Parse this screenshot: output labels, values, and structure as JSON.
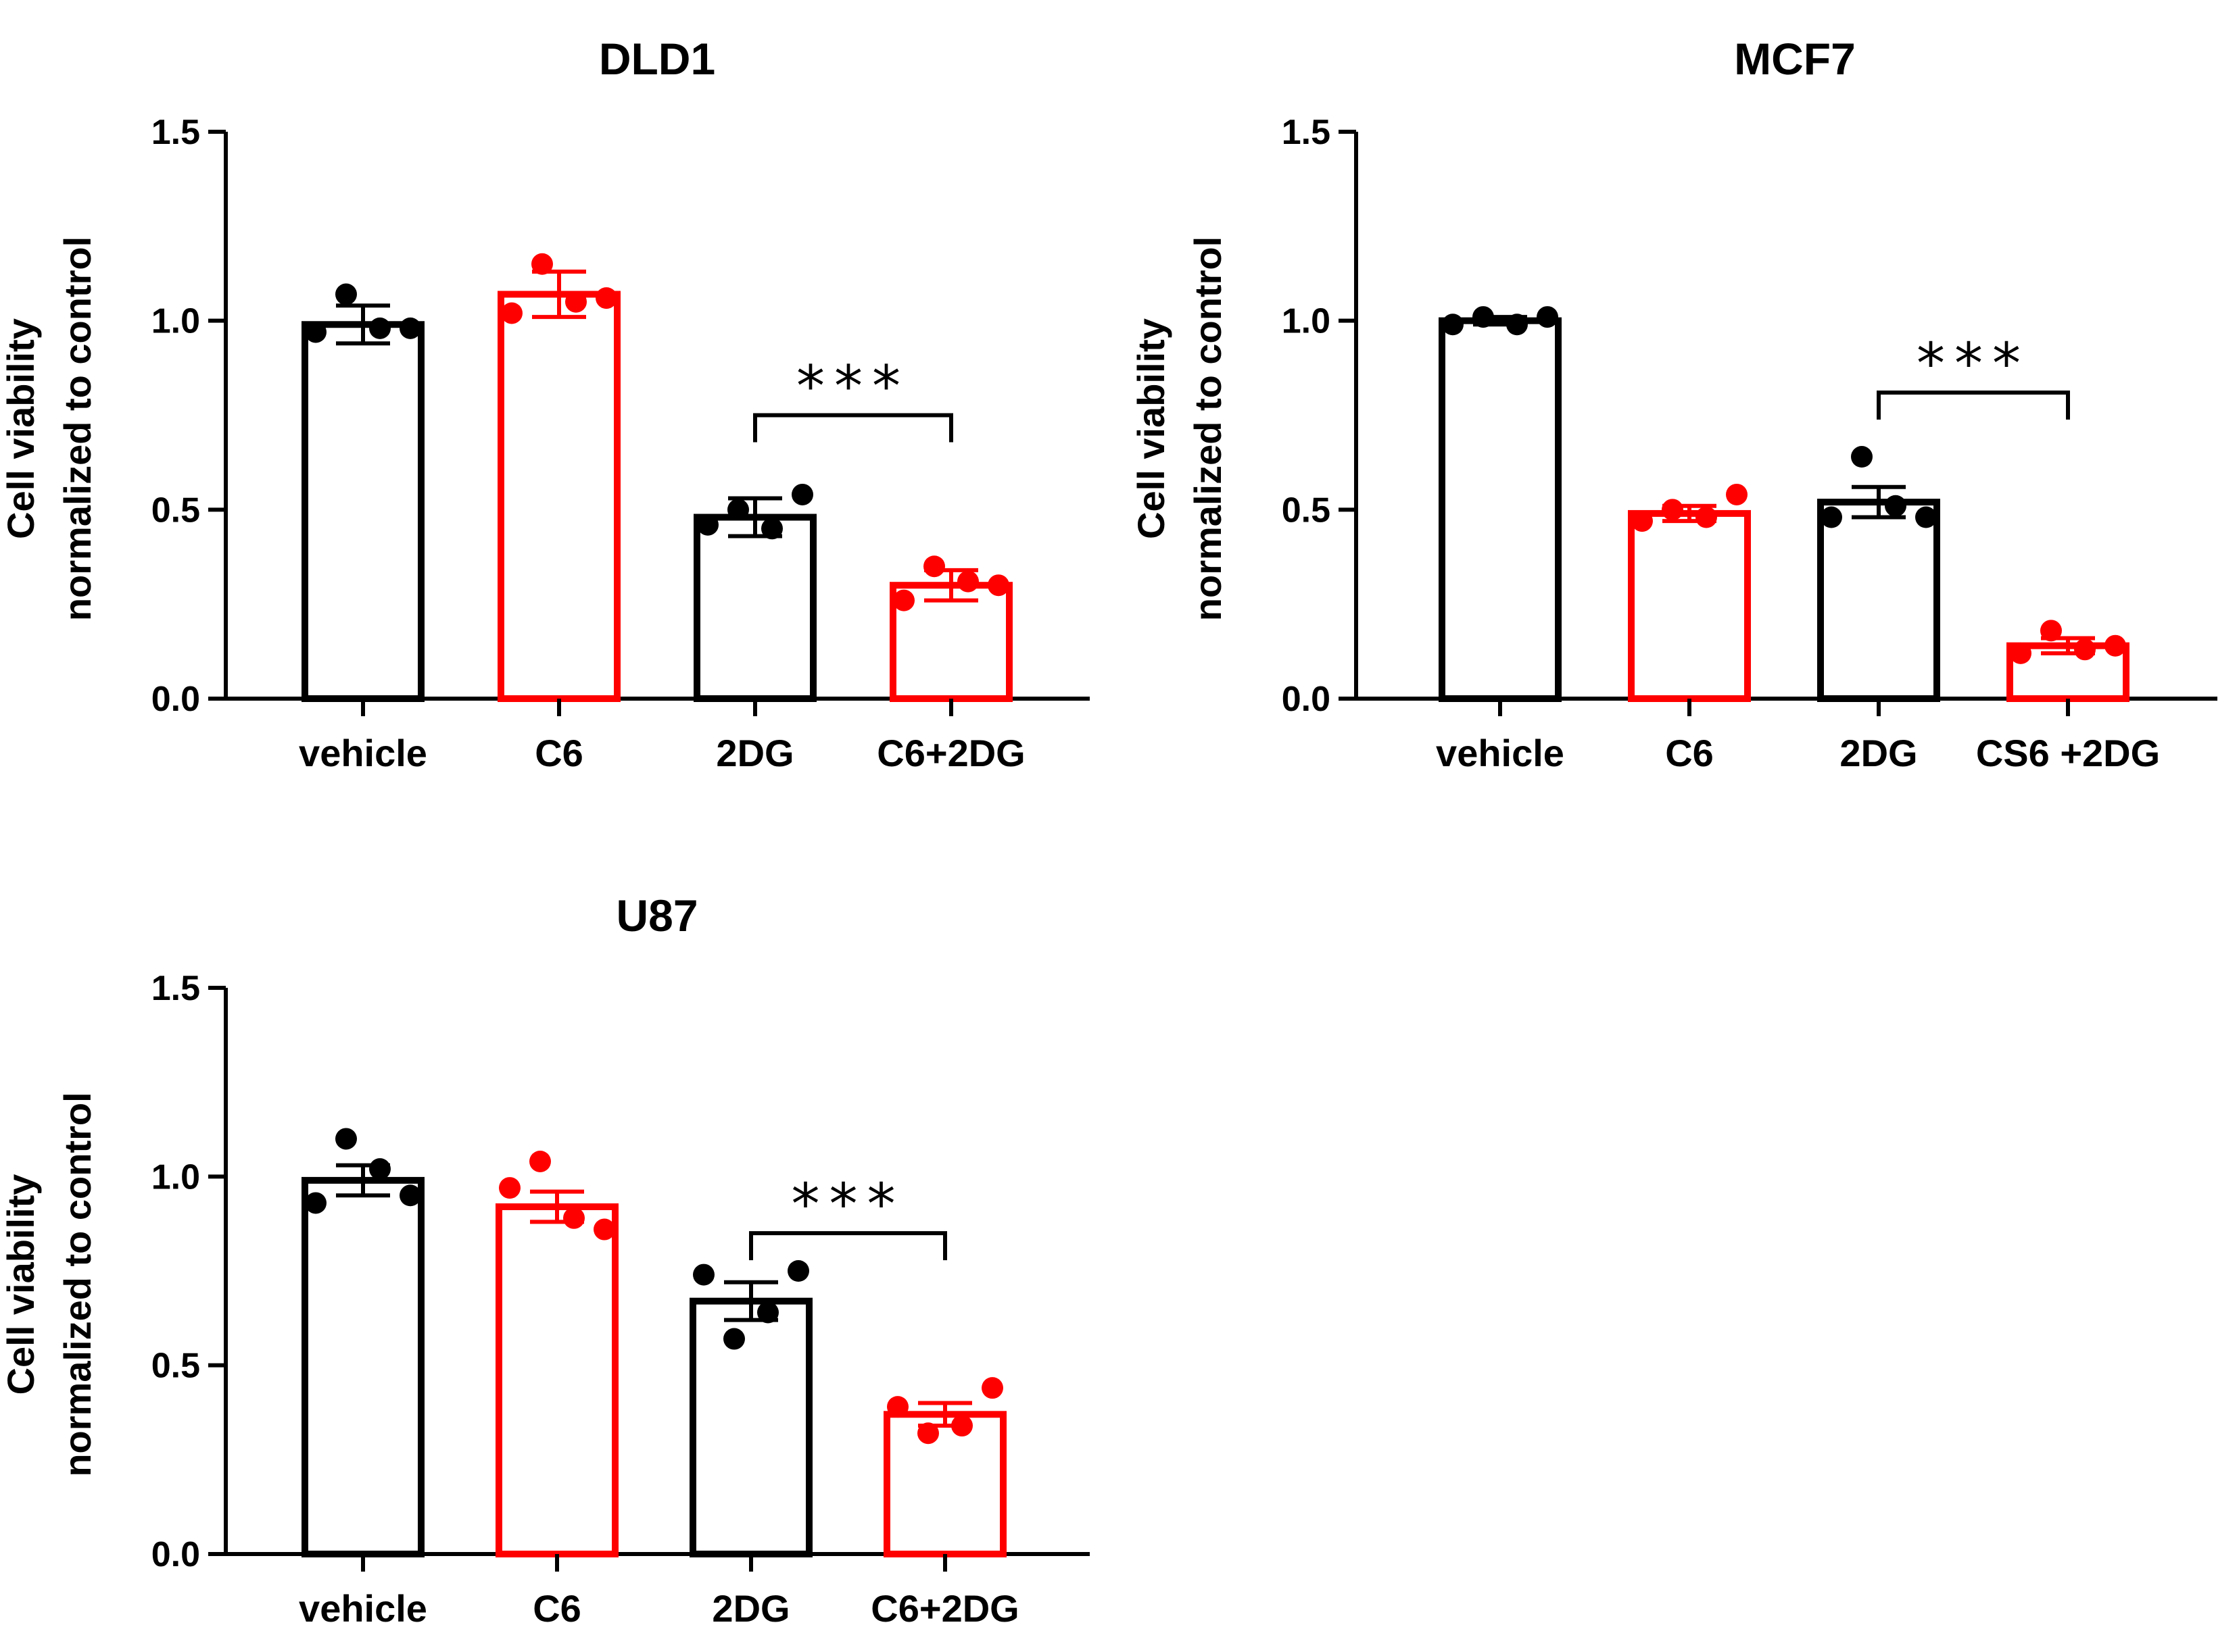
{
  "colors": {
    "control": "#000000",
    "treated": "#ff0000"
  },
  "chart_data": [
    {
      "type": "bar",
      "title": "DLD1",
      "ylabel": [
        "Cell viability",
        "normalized to control"
      ],
      "xlabel": "",
      "ylim": [
        0,
        1.5
      ],
      "yticks": [
        "0.0",
        "0.5",
        "1.0",
        "1.5"
      ],
      "categories": [
        "vehicle",
        "C6",
        "2DG",
        "C6+2DG"
      ],
      "bar_colors": [
        "control",
        "treated",
        "control",
        "treated"
      ],
      "values": [
        0.99,
        1.07,
        0.48,
        0.3
      ],
      "sem": [
        0.05,
        0.06,
        0.05,
        0.04
      ],
      "points": [
        [
          0.97,
          1.07,
          0.98,
          0.98
        ],
        [
          1.02,
          1.15,
          1.05,
          1.06
        ],
        [
          0.46,
          0.5,
          0.45,
          0.54
        ],
        [
          0.26,
          0.35,
          0.31,
          0.3
        ]
      ],
      "comparison": {
        "from": 2,
        "to": 3,
        "bracket_y": 0.75,
        "label": "***"
      }
    },
    {
      "type": "bar",
      "title": "MCF7",
      "ylabel": [
        "Cell viability",
        "normalized to control"
      ],
      "xlabel": "",
      "ylim": [
        0,
        1.5
      ],
      "yticks": [
        "0.0",
        "0.5",
        "1.0",
        "1.5"
      ],
      "categories": [
        "vehicle",
        "C6",
        "2DG",
        "CS6 +2DG"
      ],
      "bar_colors": [
        "control",
        "treated",
        "control",
        "treated"
      ],
      "values": [
        1.0,
        0.49,
        0.52,
        0.14
      ],
      "sem": [
        0.01,
        0.02,
        0.04,
        0.02
      ],
      "points": [
        [
          0.99,
          1.01,
          0.99,
          1.01
        ],
        [
          0.47,
          0.5,
          0.48,
          0.54
        ],
        [
          0.48,
          0.64,
          0.51,
          0.48
        ],
        [
          0.12,
          0.18,
          0.13,
          0.14
        ]
      ],
      "comparison": {
        "from": 2,
        "to": 3,
        "bracket_y": 0.81,
        "label": "***"
      }
    },
    {
      "type": "bar",
      "title": "U87",
      "ylabel": [
        "Cell viability",
        "normalized to control"
      ],
      "xlabel": "",
      "ylim": [
        0,
        1.5
      ],
      "yticks": [
        "0.0",
        "0.5",
        "1.0",
        "1.5"
      ],
      "categories": [
        "vehicle",
        "C6",
        "2DG",
        "C6+2DG"
      ],
      "bar_colors": [
        "control",
        "treated",
        "control",
        "treated"
      ],
      "values": [
        0.99,
        0.92,
        0.67,
        0.37
      ],
      "sem": [
        0.04,
        0.04,
        0.05,
        0.03
      ],
      "points": [
        [
          0.93,
          1.1,
          1.02,
          0.95
        ],
        [
          0.97,
          1.04,
          0.89,
          0.86
        ],
        [
          0.74,
          0.57,
          0.64,
          0.75
        ],
        [
          0.39,
          0.32,
          0.34,
          0.44
        ]
      ],
      "comparison": {
        "from": 2,
        "to": 3,
        "bracket_y": 0.85,
        "label": "***"
      }
    }
  ]
}
